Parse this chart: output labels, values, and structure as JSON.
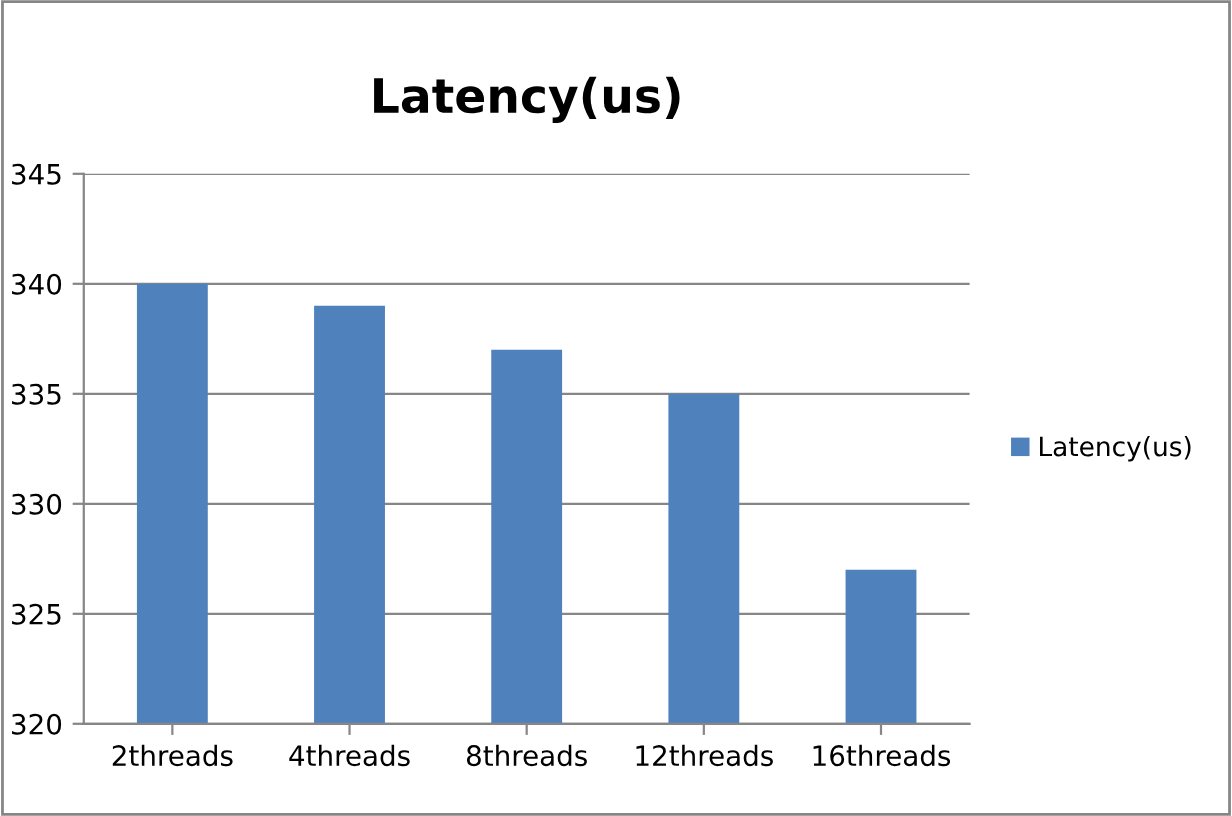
{
  "chart_data": {
    "type": "bar",
    "title": "Latency(us)",
    "categories": [
      "2threads",
      "4threads",
      "8threads",
      "12threads",
      "16threads"
    ],
    "series": [
      {
        "name": "Latency(us)",
        "color": "#4f81bd",
        "values": [
          340,
          339,
          337,
          335,
          327
        ]
      }
    ],
    "ylim": [
      320,
      345
    ],
    "yticks": [
      320,
      325,
      330,
      335,
      340,
      345
    ],
    "grid": "y",
    "legend": "right"
  }
}
